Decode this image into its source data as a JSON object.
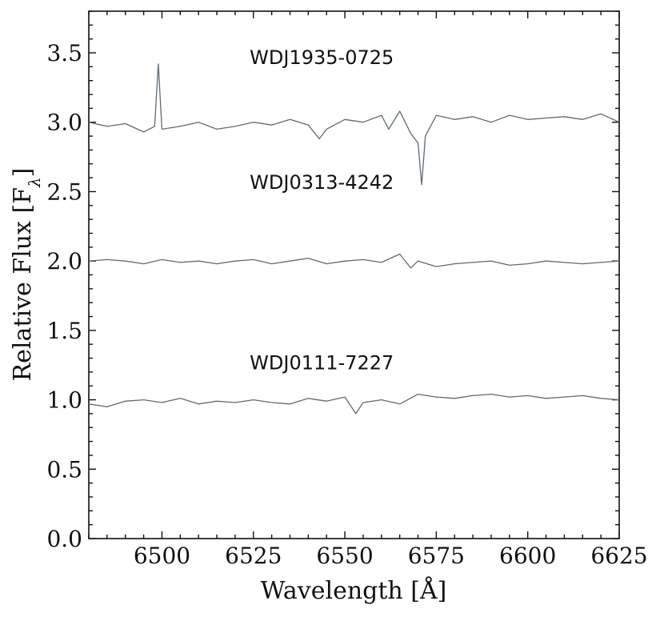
{
  "chart_data": {
    "type": "line",
    "title": "",
    "xlabel": "Wavelength [Å]",
    "ylabel": "Relative Flux [F",
    "ylabel_subscript": "λ",
    "ylabel_close": "]",
    "xlim": [
      6480,
      6625
    ],
    "ylim": [
      0.0,
      3.8
    ],
    "xticks": [
      6500,
      6525,
      6550,
      6575,
      6600,
      6625
    ],
    "xtick_labels": [
      "6500",
      "6525",
      "6550",
      "6575",
      "6600",
      "6625"
    ],
    "yticks": [
      0.0,
      0.5,
      1.0,
      1.5,
      2.0,
      2.5,
      3.0,
      3.5
    ],
    "ytick_labels": [
      "0.0",
      "0.5",
      "1.0",
      "1.5",
      "2.0",
      "2.5",
      "3.0",
      "3.5"
    ],
    "line_color": "#5f6b73",
    "grid": false,
    "series": [
      {
        "name": "WDJ1935-0725",
        "label_pos": [
          6524,
          3.42
        ],
        "x": [
          6480,
          6485,
          6490,
          6495,
          6498,
          6499,
          6500,
          6505,
          6510,
          6515,
          6520,
          6525,
          6530,
          6535,
          6540,
          6543,
          6545,
          6550,
          6555,
          6560,
          6562,
          6565,
          6568,
          6570,
          6571,
          6572,
          6575,
          6580,
          6585,
          6590,
          6595,
          6600,
          6605,
          6610,
          6615,
          6620,
          6625
        ],
        "y": [
          3.0,
          2.97,
          2.99,
          2.93,
          2.97,
          3.42,
          2.95,
          2.97,
          3.0,
          2.95,
          2.97,
          3.0,
          2.98,
          3.02,
          2.98,
          2.88,
          2.95,
          3.02,
          3.0,
          3.05,
          2.95,
          3.08,
          2.92,
          2.85,
          2.55,
          2.9,
          3.05,
          3.02,
          3.04,
          3.0,
          3.05,
          3.02,
          3.03,
          3.04,
          3.02,
          3.06,
          3.0
        ]
      },
      {
        "name": "WDJ0313-4242",
        "label_pos": [
          6524,
          2.52
        ],
        "x": [
          6480,
          6485,
          6490,
          6495,
          6500,
          6505,
          6510,
          6515,
          6520,
          6525,
          6530,
          6535,
          6540,
          6545,
          6550,
          6555,
          6560,
          6565,
          6568,
          6570,
          6575,
          6580,
          6585,
          6590,
          6595,
          6600,
          6605,
          6610,
          6615,
          6620,
          6625
        ],
        "y": [
          2.0,
          2.01,
          2.0,
          1.98,
          2.01,
          1.99,
          2.0,
          1.98,
          2.0,
          2.01,
          1.98,
          2.0,
          2.02,
          1.98,
          2.0,
          2.01,
          1.99,
          2.05,
          1.95,
          2.0,
          1.96,
          1.98,
          1.99,
          2.0,
          1.97,
          1.98,
          2.0,
          1.99,
          1.98,
          1.99,
          2.0
        ]
      },
      {
        "name": "WDJ0111-7227",
        "label_pos": [
          6524,
          1.22
        ],
        "x": [
          6480,
          6485,
          6490,
          6495,
          6500,
          6505,
          6510,
          6515,
          6520,
          6525,
          6530,
          6535,
          6540,
          6545,
          6550,
          6553,
          6555,
          6560,
          6565,
          6570,
          6575,
          6580,
          6585,
          6590,
          6595,
          6600,
          6605,
          6610,
          6615,
          6620,
          6625
        ],
        "y": [
          0.97,
          0.95,
          0.99,
          1.0,
          0.98,
          1.01,
          0.97,
          0.99,
          0.98,
          1.0,
          0.98,
          0.97,
          1.01,
          0.99,
          1.02,
          0.9,
          0.98,
          1.0,
          0.97,
          1.04,
          1.02,
          1.01,
          1.03,
          1.04,
          1.02,
          1.03,
          1.01,
          1.02,
          1.03,
          1.01,
          1.0
        ]
      }
    ]
  }
}
